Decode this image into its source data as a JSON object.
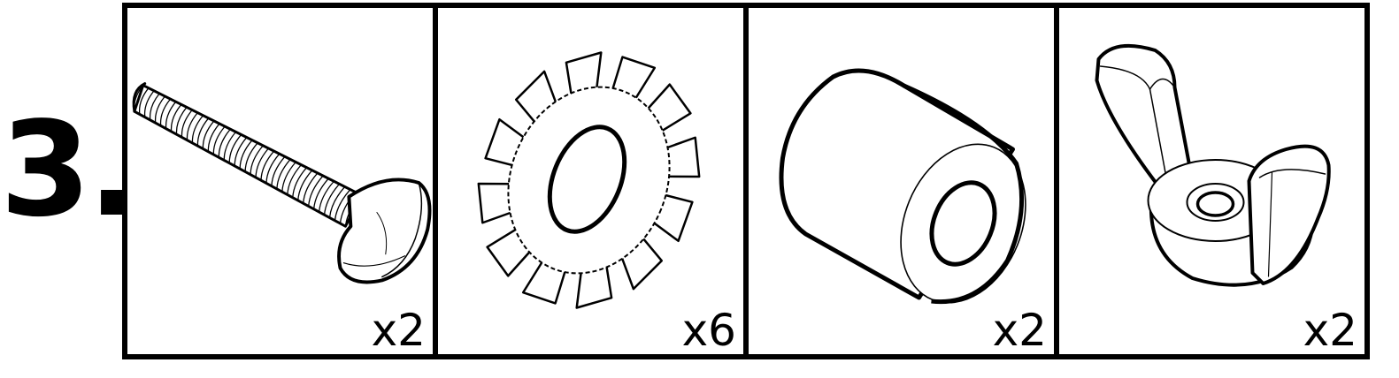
{
  "step": {
    "label": "3."
  },
  "parts": [
    {
      "icon": "thumb-screw-icon",
      "quantity": "x2"
    },
    {
      "icon": "star-lock-washer-icon",
      "quantity": "x6"
    },
    {
      "icon": "spacer-sleeve-icon",
      "quantity": "x2"
    },
    {
      "icon": "wing-nut-icon",
      "quantity": "x2"
    }
  ],
  "colors": {
    "stroke": "#000000",
    "background": "#ffffff"
  }
}
